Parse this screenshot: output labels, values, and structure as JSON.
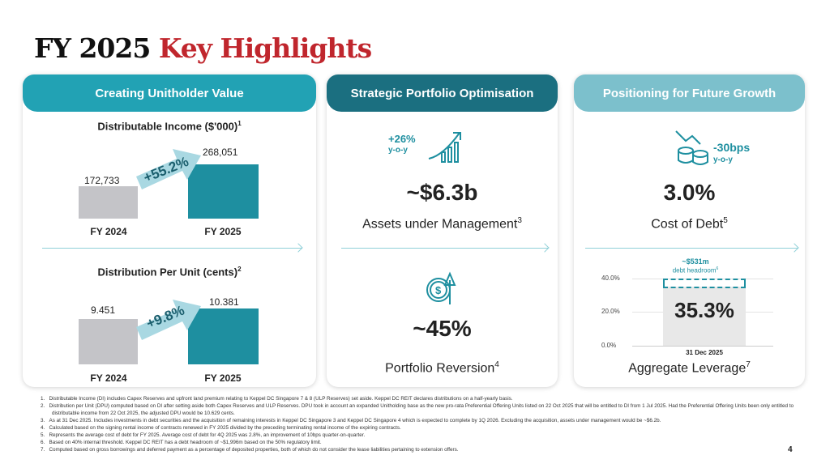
{
  "title": {
    "part1": "FY 2025",
    "part2": "Key Highlights"
  },
  "colors": {
    "accent_red": "#c0262d",
    "teal": "#1e8fa0",
    "dark_teal": "#1b6f80",
    "light_teal": "#7cc0cc",
    "gray_bar": "#c4c4c8"
  },
  "panels": [
    {
      "header": "Creating Unitholder Value",
      "charts": [
        {
          "title": "Distributable Income ($'000)",
          "footnote": "1",
          "categories": [
            "FY 2024",
            "FY 2025"
          ],
          "values": [
            172733,
            268051
          ],
          "value_labels": [
            "172,733",
            "268,051"
          ],
          "growth": "+55.2%"
        },
        {
          "title": "Distribution Per Unit (cents)",
          "footnote": "2",
          "categories": [
            "FY 2024",
            "FY 2025"
          ],
          "values": [
            9.451,
            10.381
          ],
          "value_labels": [
            "9.451",
            "10.381"
          ],
          "growth": "+9.8%"
        }
      ]
    },
    {
      "header": "Strategic Portfolio Optimisation",
      "aum": {
        "change": "+26%",
        "change_sub": "y-o-y",
        "value": "~$6.3b",
        "label": "Assets under Management",
        "footnote": "3",
        "icon": "growth-chart-icon"
      },
      "reversion": {
        "value": "~45%",
        "label": "Portfolio Reversion",
        "footnote": "4",
        "icon": "dollar-up-icon"
      }
    },
    {
      "header": "Positioning for Future Growth",
      "cost": {
        "change": "-30bps",
        "change_sub": "y-o-y",
        "value": "3.0%",
        "label": "Cost of Debt",
        "footnote": "5",
        "icon": "coins-down-icon"
      },
      "leverage": {
        "headroom": "~$531m",
        "headroom_label": "debt headroom",
        "headroom_fn": "6",
        "value": "35.3%",
        "category": "31 Dec 2025",
        "label": "Aggregate Leverage",
        "footnote": "7",
        "yticks": [
          "40.0%",
          "20.0%",
          "0.0%"
        ],
        "value_num": 35.3,
        "threshold": 40
      }
    }
  ],
  "footnotes": [
    "1.   Distributable Income (DI) includes Capex Reserves and upfront land premium relating to Keppel DC Singapore 7 & 8 (ULP Reserves) set aside. Keppel DC REIT declares distributions on a half-yearly basis.",
    "2.   Distribution per Unit (DPU) computed based on DI after setting aside both Capex Reserves and ULP Reserves. DPU took in account an expanded Unitholding base as the new pro-rata Preferential Offering Units listed on 22 Oct 2025 that will be entitled to DI from 1 Jul 2025. Had the Preferential Offering Units been only entitled to distributable income from 22 Oct 2025, the adjusted DPU would be 10.629 cents.",
    "3.   As at 31 Dec 2025. Includes investments in debt securities and the acquisition of remaining interests in Keppel DC Singapore 3 and Keppel DC Singapore 4 which is expected to complete by 1Q 2026. Excluding the acquisition, assets under management would be ~$6.2b.",
    "4.   Calculated based on the signing rental income of contracts renewed in FY 2025 divided by the preceding terminating rental income of the expiring contracts.",
    "5.   Represents the average cost of debt for FY 2025. Average cost of debt for 4Q 2025 was 2.8%, an improvement of 10bps quarter-on-quarter.",
    "6.   Based on 40% internal threshold. Keppel DC REIT has a debt headroom of ~$1,996m based on the 50% regulatory limit.",
    "7.   Computed based on gross borrowings and deferred payment as a percentage of deposited properties, both of which do not consider the lease liabilities pertaining to extension offers."
  ],
  "page_number": "4"
}
